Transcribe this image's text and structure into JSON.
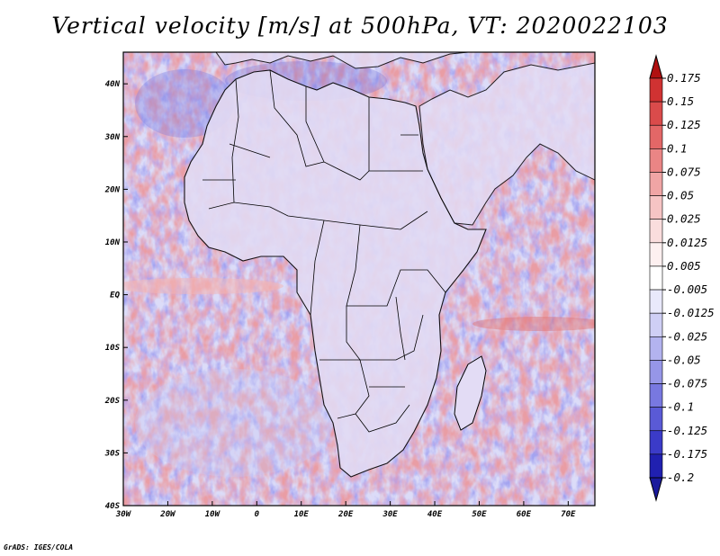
{
  "title": "Vertical velocity [m/s] at 500hPa, VT: 2020022103",
  "credit": "GrADS: IGES/COLA",
  "chart_data": {
    "type": "heatmap",
    "title": "Vertical velocity [m/s] at 500hPa, VT: 2020022103",
    "variable": "Vertical velocity",
    "units": "m/s",
    "level": "500hPa",
    "valid_time": "2020022103",
    "xlim": [
      -30,
      76
    ],
    "ylim": [
      -40,
      46
    ],
    "x_ticks": [
      {
        "value": -30,
        "label": "30W"
      },
      {
        "value": -20,
        "label": "20W"
      },
      {
        "value": -10,
        "label": "10W"
      },
      {
        "value": 0,
        "label": "0"
      },
      {
        "value": 10,
        "label": "10E"
      },
      {
        "value": 20,
        "label": "20E"
      },
      {
        "value": 30,
        "label": "30E"
      },
      {
        "value": 40,
        "label": "40E"
      },
      {
        "value": 50,
        "label": "50E"
      },
      {
        "value": 60,
        "label": "60E"
      },
      {
        "value": 70,
        "label": "70E"
      }
    ],
    "y_ticks": [
      {
        "value": -40,
        "label": "40S"
      },
      {
        "value": -30,
        "label": "30S"
      },
      {
        "value": -20,
        "label": "20S"
      },
      {
        "value": -10,
        "label": "10S"
      },
      {
        "value": 0,
        "label": "EQ"
      },
      {
        "value": 10,
        "label": "10N"
      },
      {
        "value": 20,
        "label": "20N"
      },
      {
        "value": 30,
        "label": "30N"
      },
      {
        "value": 40,
        "label": "40N"
      }
    ],
    "colorbar": [
      {
        "label": "0.175",
        "color": "#c41a1a"
      },
      {
        "label": "0.15",
        "color": "#d03232"
      },
      {
        "label": "0.125",
        "color": "#da4b4b"
      },
      {
        "label": "0.1",
        "color": "#e36767"
      },
      {
        "label": "0.075",
        "color": "#ea8585"
      },
      {
        "label": "0.05",
        "color": "#f0a5a5"
      },
      {
        "label": "0.025",
        "color": "#f6c4c4"
      },
      {
        "label": "0.0125",
        "color": "#fadddd"
      },
      {
        "label": "0.005",
        "color": "#fdf0f0"
      },
      {
        "label": "-0.005",
        "color": "#ffffff"
      },
      {
        "label": "-0.0125",
        "color": "#e9e9fb"
      },
      {
        "label": "-0.025",
        "color": "#cfcff5"
      },
      {
        "label": "-0.05",
        "color": "#b3b3ef"
      },
      {
        "label": "-0.075",
        "color": "#9696e8"
      },
      {
        "label": "-0.1",
        "color": "#7878e0"
      },
      {
        "label": "-0.125",
        "color": "#5a5ad6"
      },
      {
        "label": "-0.175",
        "color": "#3b3bc8"
      },
      {
        "label": "-0.2",
        "color": "#2020b0"
      }
    ],
    "colorbar_ends": {
      "top": "#b01010",
      "bottom": "#1a1a9c"
    },
    "base_colors": {
      "ocean": "#dcdcf8",
      "land": "#e2dbf4",
      "border": "#000000"
    }
  }
}
